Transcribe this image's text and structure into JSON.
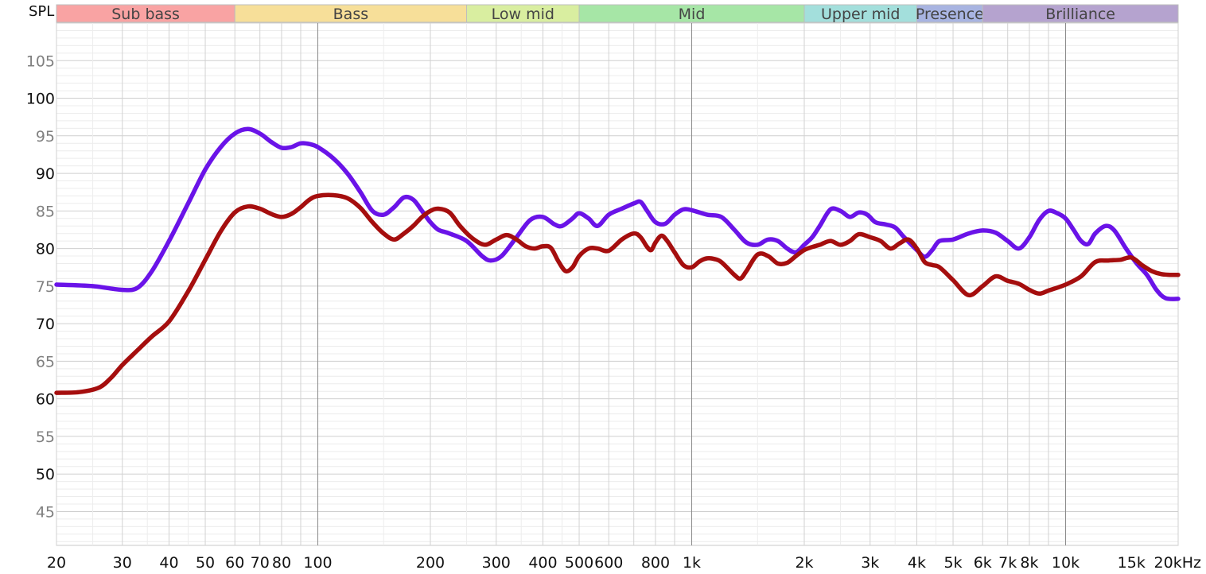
{
  "chart_data": {
    "type": "line",
    "title": "",
    "ylabel": "SPL",
    "xlabel": "",
    "x_scale": "log",
    "xlim": [
      20,
      20000
    ],
    "ylim": [
      40.5,
      110
    ],
    "grid": true,
    "bands": [
      {
        "label": "Sub bass",
        "from": 20,
        "to": 60,
        "color": "#f9a3a3"
      },
      {
        "label": "Bass",
        "from": 60,
        "to": 250,
        "color": "#f7df99"
      },
      {
        "label": "Low mid",
        "from": 250,
        "to": 500,
        "color": "#d9eea0"
      },
      {
        "label": "Mid",
        "from": 500,
        "to": 2000,
        "color": "#a6e6a6"
      },
      {
        "label": "Upper mid",
        "from": 2000,
        "to": 4000,
        "color": "#a3dfdc"
      },
      {
        "label": "Presence",
        "from": 4000,
        "to": 6000,
        "color": "#a8b4e1"
      },
      {
        "label": "Brilliance",
        "from": 6000,
        "to": 20000,
        "color": "#b5a3cf"
      }
    ],
    "y_ticks": [
      {
        "value": 45,
        "label": "45",
        "major": false
      },
      {
        "value": 50,
        "label": "50",
        "major": true
      },
      {
        "value": 55,
        "label": "55",
        "major": false
      },
      {
        "value": 60,
        "label": "60",
        "major": true
      },
      {
        "value": 65,
        "label": "65",
        "major": false
      },
      {
        "value": 70,
        "label": "70",
        "major": true
      },
      {
        "value": 75,
        "label": "75",
        "major": false
      },
      {
        "value": 80,
        "label": "80",
        "major": true
      },
      {
        "value": 85,
        "label": "85",
        "major": false
      },
      {
        "value": 90,
        "label": "90",
        "major": true
      },
      {
        "value": 95,
        "label": "95",
        "major": false
      },
      {
        "value": 100,
        "label": "100",
        "major": true
      },
      {
        "value": 105,
        "label": "105",
        "major": false
      }
    ],
    "x_ticks": [
      {
        "value": 20,
        "label": "20"
      },
      {
        "value": 30,
        "label": "30"
      },
      {
        "value": 40,
        "label": "40"
      },
      {
        "value": 50,
        "label": "50"
      },
      {
        "value": 60,
        "label": "60"
      },
      {
        "value": 70,
        "label": "70"
      },
      {
        "value": 80,
        "label": "80"
      },
      {
        "value": 100,
        "label": "100"
      },
      {
        "value": 200,
        "label": "200"
      },
      {
        "value": 300,
        "label": "300"
      },
      {
        "value": 400,
        "label": "400"
      },
      {
        "value": 500,
        "label": "500"
      },
      {
        "value": 600,
        "label": "600"
      },
      {
        "value": 800,
        "label": "800"
      },
      {
        "value": 1000,
        "label": "1k"
      },
      {
        "value": 2000,
        "label": "2k"
      },
      {
        "value": 3000,
        "label": "3k"
      },
      {
        "value": 4000,
        "label": "4k"
      },
      {
        "value": 5000,
        "label": "5k"
      },
      {
        "value": 6000,
        "label": "6k"
      },
      {
        "value": 7000,
        "label": "7k"
      },
      {
        "value": 8000,
        "label": "8k"
      },
      {
        "value": 10000,
        "label": "10k"
      },
      {
        "value": 15000,
        "label": "15k",
        "muted": true
      },
      {
        "value": 20000,
        "label": "20kHz"
      }
    ],
    "series": [
      {
        "color": "#6a13e8",
        "points": [
          [
            20,
            75.2
          ],
          [
            25,
            75.0
          ],
          [
            30,
            74.5
          ],
          [
            33,
            74.8
          ],
          [
            36,
            77
          ],
          [
            40,
            81
          ],
          [
            45,
            86
          ],
          [
            50,
            90.5
          ],
          [
            55,
            93.5
          ],
          [
            60,
            95.3
          ],
          [
            65,
            95.9
          ],
          [
            70,
            95.3
          ],
          [
            75,
            94.2
          ],
          [
            80,
            93.4
          ],
          [
            85,
            93.5
          ],
          [
            90,
            94
          ],
          [
            95,
            93.9
          ],
          [
            100,
            93.5
          ],
          [
            110,
            92
          ],
          [
            120,
            90
          ],
          [
            130,
            87.5
          ],
          [
            140,
            85
          ],
          [
            150,
            84.5
          ],
          [
            160,
            85.5
          ],
          [
            170,
            86.8
          ],
          [
            180,
            86.5
          ],
          [
            190,
            85
          ],
          [
            200,
            83.5
          ],
          [
            210,
            82.5
          ],
          [
            225,
            82
          ],
          [
            250,
            81
          ],
          [
            275,
            79
          ],
          [
            290,
            78.4
          ],
          [
            310,
            79
          ],
          [
            340,
            81.5
          ],
          [
            370,
            83.8
          ],
          [
            400,
            84.2
          ],
          [
            430,
            83.2
          ],
          [
            450,
            83
          ],
          [
            480,
            84
          ],
          [
            500,
            84.7
          ],
          [
            530,
            84
          ],
          [
            560,
            83
          ],
          [
            600,
            84.5
          ],
          [
            650,
            85.3
          ],
          [
            700,
            86
          ],
          [
            730,
            86.2
          ],
          [
            760,
            85
          ],
          [
            800,
            83.5
          ],
          [
            850,
            83.3
          ],
          [
            900,
            84.5
          ],
          [
            950,
            85.2
          ],
          [
            1000,
            85.1
          ],
          [
            1100,
            84.5
          ],
          [
            1200,
            84.2
          ],
          [
            1300,
            82.5
          ],
          [
            1400,
            80.8
          ],
          [
            1500,
            80.5
          ],
          [
            1600,
            81.2
          ],
          [
            1700,
            81
          ],
          [
            1800,
            80
          ],
          [
            1900,
            79.5
          ],
          [
            2000,
            80.5
          ],
          [
            2100,
            81.5
          ],
          [
            2200,
            83
          ],
          [
            2350,
            85.2
          ],
          [
            2500,
            85
          ],
          [
            2650,
            84.2
          ],
          [
            2800,
            84.8
          ],
          [
            2950,
            84.5
          ],
          [
            3100,
            83.5
          ],
          [
            3300,
            83.2
          ],
          [
            3500,
            82.8
          ],
          [
            3700,
            81.5
          ],
          [
            4000,
            79.8
          ],
          [
            4200,
            78.9
          ],
          [
            4400,
            79.8
          ],
          [
            4600,
            81
          ],
          [
            5000,
            81.2
          ],
          [
            5500,
            82
          ],
          [
            6000,
            82.4
          ],
          [
            6500,
            82.1
          ],
          [
            7000,
            81
          ],
          [
            7500,
            80
          ],
          [
            8000,
            81.5
          ],
          [
            8500,
            83.8
          ],
          [
            9000,
            85
          ],
          [
            9500,
            84.7
          ],
          [
            10000,
            84
          ],
          [
            10500,
            82.5
          ],
          [
            11000,
            81
          ],
          [
            11500,
            80.6
          ],
          [
            12000,
            82
          ],
          [
            12800,
            83
          ],
          [
            13500,
            82.4
          ],
          [
            14500,
            80
          ],
          [
            15500,
            78
          ],
          [
            16500,
            76.5
          ],
          [
            17500,
            74.5
          ],
          [
            18500,
            73.4
          ],
          [
            20000,
            73.3
          ]
        ]
      },
      {
        "color": "#a50e0e",
        "points": [
          [
            20,
            60.8
          ],
          [
            23,
            60.9
          ],
          [
            26,
            61.5
          ],
          [
            28,
            62.8
          ],
          [
            30,
            64.5
          ],
          [
            33,
            66.5
          ],
          [
            36,
            68.3
          ],
          [
            40,
            70.3
          ],
          [
            45,
            74.3
          ],
          [
            50,
            78.5
          ],
          [
            55,
            82.3
          ],
          [
            60,
            84.8
          ],
          [
            65,
            85.6
          ],
          [
            70,
            85.3
          ],
          [
            75,
            84.6
          ],
          [
            80,
            84.2
          ],
          [
            85,
            84.6
          ],
          [
            90,
            85.5
          ],
          [
            95,
            86.5
          ],
          [
            100,
            87
          ],
          [
            110,
            87.1
          ],
          [
            120,
            86.7
          ],
          [
            130,
            85.4
          ],
          [
            140,
            83.5
          ],
          [
            150,
            82
          ],
          [
            160,
            81.2
          ],
          [
            170,
            82
          ],
          [
            180,
            83
          ],
          [
            190,
            84.2
          ],
          [
            200,
            85
          ],
          [
            210,
            85.3
          ],
          [
            225,
            84.8
          ],
          [
            240,
            83
          ],
          [
            260,
            81.3
          ],
          [
            280,
            80.5
          ],
          [
            300,
            81.2
          ],
          [
            320,
            81.8
          ],
          [
            340,
            81.2
          ],
          [
            360,
            80.3
          ],
          [
            380,
            80
          ],
          [
            400,
            80.3
          ],
          [
            420,
            80.1
          ],
          [
            440,
            78.3
          ],
          [
            460,
            77
          ],
          [
            480,
            77.5
          ],
          [
            500,
            79
          ],
          [
            530,
            80
          ],
          [
            560,
            80
          ],
          [
            600,
            79.7
          ],
          [
            650,
            81.2
          ],
          [
            700,
            82
          ],
          [
            730,
            81.5
          ],
          [
            760,
            80.2
          ],
          [
            780,
            79.8
          ],
          [
            800,
            80.8
          ],
          [
            830,
            81.7
          ],
          [
            860,
            81
          ],
          [
            900,
            79.5
          ],
          [
            950,
            77.8
          ],
          [
            1000,
            77.5
          ],
          [
            1050,
            78.3
          ],
          [
            1100,
            78.7
          ],
          [
            1150,
            78.6
          ],
          [
            1200,
            78.2
          ],
          [
            1300,
            76.5
          ],
          [
            1350,
            76
          ],
          [
            1400,
            77
          ],
          [
            1500,
            79.2
          ],
          [
            1600,
            79
          ],
          [
            1700,
            78
          ],
          [
            1800,
            78.1
          ],
          [
            1900,
            79
          ],
          [
            2000,
            79.8
          ],
          [
            2100,
            80.2
          ],
          [
            2200,
            80.5
          ],
          [
            2350,
            81
          ],
          [
            2500,
            80.5
          ],
          [
            2650,
            81
          ],
          [
            2800,
            81.9
          ],
          [
            3000,
            81.5
          ],
          [
            3200,
            81
          ],
          [
            3400,
            80
          ],
          [
            3600,
            80.7
          ],
          [
            3800,
            81.2
          ],
          [
            4000,
            80
          ],
          [
            4200,
            78.2
          ],
          [
            4400,
            77.8
          ],
          [
            4600,
            77.5
          ],
          [
            5000,
            75.8
          ],
          [
            5500,
            73.8
          ],
          [
            6000,
            75
          ],
          [
            6500,
            76.3
          ],
          [
            7000,
            75.7
          ],
          [
            7500,
            75.3
          ],
          [
            8000,
            74.5
          ],
          [
            8500,
            74
          ],
          [
            9000,
            74.4
          ],
          [
            10000,
            75.2
          ],
          [
            11000,
            76.3
          ],
          [
            12000,
            78.2
          ],
          [
            13000,
            78.4
          ],
          [
            14000,
            78.5
          ],
          [
            15000,
            78.8
          ],
          [
            16000,
            77.8
          ],
          [
            17000,
            77
          ],
          [
            18000,
            76.6
          ],
          [
            19000,
            76.5
          ],
          [
            20000,
            76.5
          ]
        ]
      }
    ]
  }
}
